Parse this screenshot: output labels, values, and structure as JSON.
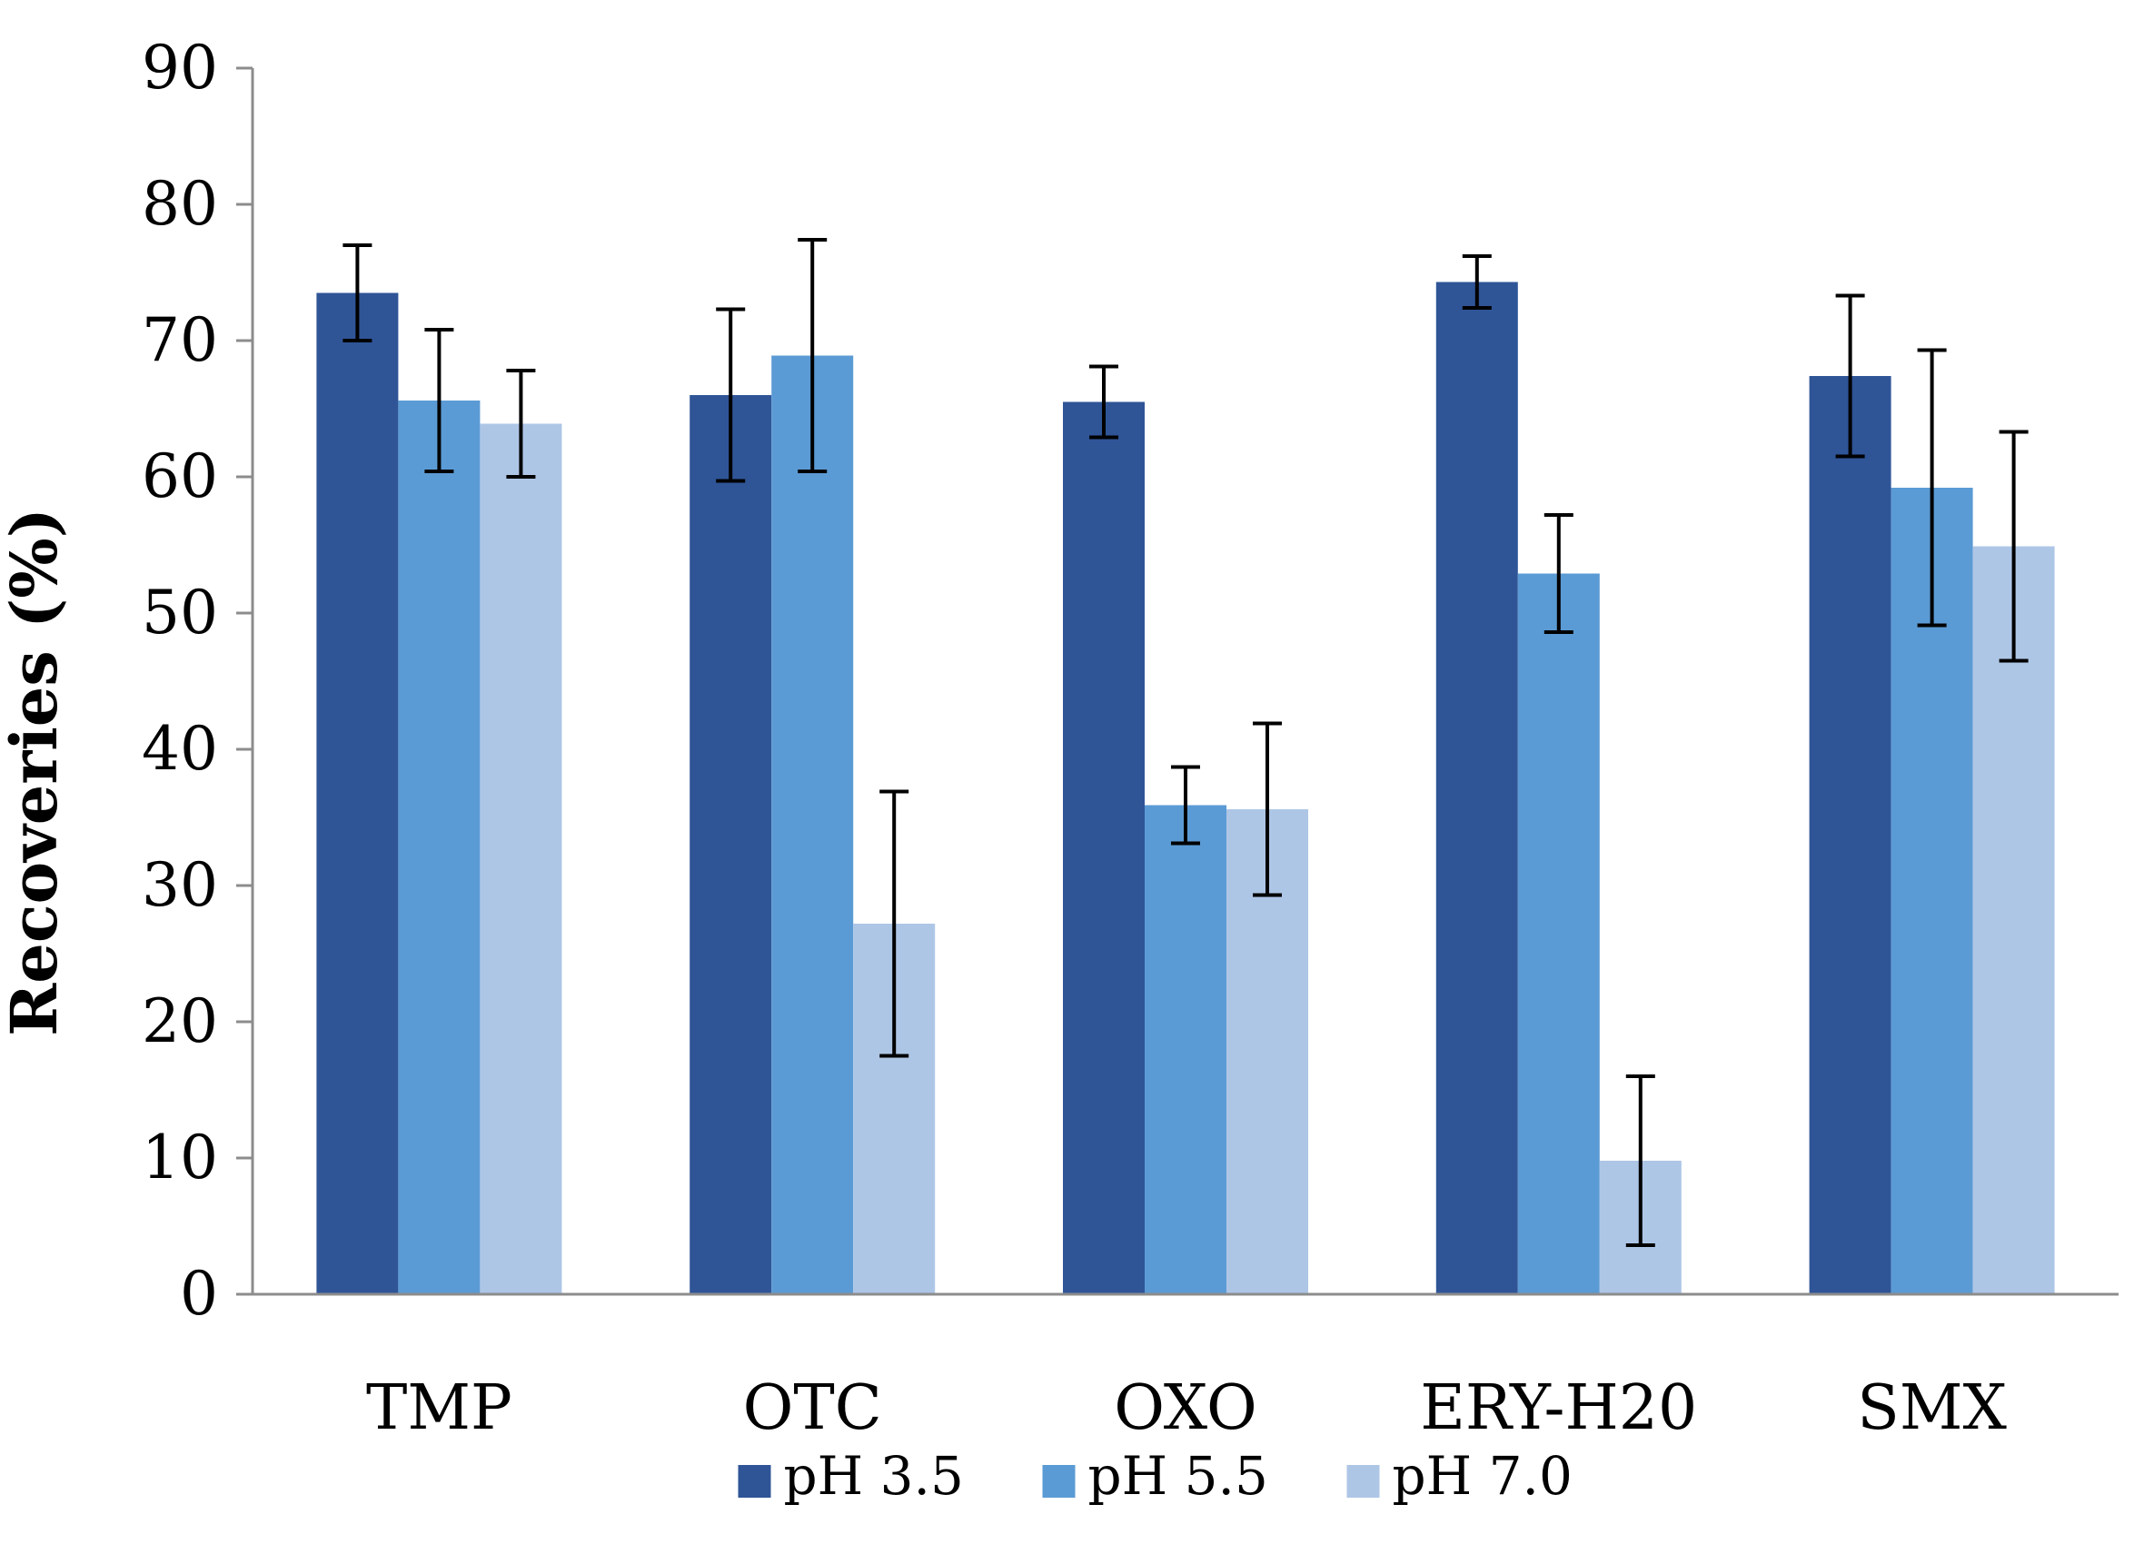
{
  "chart_data": {
    "type": "bar",
    "title": "",
    "xlabel": "",
    "ylabel": "Recoveries (%)",
    "ylim": [
      0,
      90
    ],
    "yticks": [
      0,
      10,
      20,
      30,
      40,
      50,
      60,
      70,
      80,
      90
    ],
    "grid": false,
    "legend_position": "bottom",
    "categories": [
      "TMP",
      "OTC",
      "OXO",
      "ERY-H20",
      "SMX"
    ],
    "series": [
      {
        "name": "pH 3.5",
        "color": "#2F5597",
        "values": [
          73.5,
          66.0,
          65.5,
          74.3,
          67.4
        ],
        "errors": [
          3.5,
          6.3,
          2.6,
          1.9,
          5.9
        ]
      },
      {
        "name": "pH 5.5",
        "color": "#5B9BD5",
        "values": [
          65.6,
          68.9,
          35.9,
          52.9,
          59.2
        ],
        "errors": [
          5.2,
          8.5,
          2.8,
          4.3,
          10.1
        ]
      },
      {
        "name": "pH 7.0",
        "color": "#AEC6E6",
        "values": [
          63.9,
          27.2,
          35.6,
          9.8,
          54.9
        ],
        "errors": [
          3.9,
          9.7,
          6.3,
          6.2,
          8.4
        ]
      }
    ]
  }
}
